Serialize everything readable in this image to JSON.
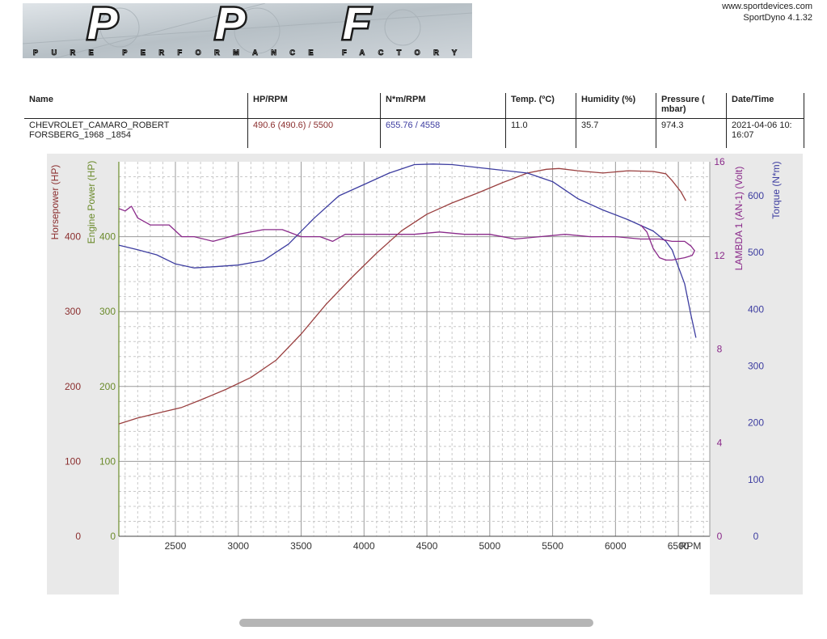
{
  "header": {
    "logo_text": "PPF",
    "logo_tagline": "PURE PERFORMANCE FACTORY",
    "website": "www.sportdevices.com",
    "software": "SportDyno 4.1.32"
  },
  "table": {
    "headers": [
      "Name",
      "HP/RPM",
      "N*m/RPM",
      "Temp. (ºC)",
      "Humidity (%)",
      "Pressure ( mbar)",
      "Date/Time"
    ],
    "row": {
      "name": "CHEVROLET_CAMARO_ROBERT FORSBERG_1968 _1854",
      "hp_rpm": "490.6 (490.6) / 5500",
      "nm_rpm": "655.76 / 4558",
      "temp": "11.0",
      "humidity": "35.7",
      "pressure": "974.3",
      "datetime": "2021-04-06 10: 16:07"
    }
  },
  "chart_data": {
    "type": "line",
    "xlabel": "RPM",
    "xlim": [
      2050,
      6750
    ],
    "x_ticks": [
      2500,
      3000,
      3500,
      4000,
      4500,
      5000,
      5500,
      6000,
      6500
    ],
    "axes": {
      "horsepower": {
        "label": "Horsepower (HP)",
        "range": [
          0,
          500
        ],
        "ticks": [
          0,
          100,
          200,
          300,
          400
        ],
        "color": "#8b2f2f"
      },
      "engine_power": {
        "label": "Engine Power (HP)",
        "range": [
          0,
          500
        ],
        "ticks": [
          0,
          100,
          200,
          300,
          400
        ],
        "color": "#6a8a2a"
      },
      "lambda": {
        "label": "LAMBDA 1 (AN-1) (Volt)",
        "range": [
          0,
          16
        ],
        "ticks": [
          0,
          4,
          8,
          12,
          16
        ],
        "color": "#8a2a8a"
      },
      "torque": {
        "label": "Torque (N*m)",
        "range": [
          0,
          660
        ],
        "ticks": [
          0,
          100,
          200,
          300,
          400,
          500,
          600
        ],
        "color": "#3d3da0"
      }
    },
    "series": [
      {
        "axis": "horsepower",
        "color": "#9a4040",
        "x": [
          2050,
          2200,
          2400,
          2550,
          2700,
          2900,
          3100,
          3300,
          3500,
          3700,
          3900,
          4100,
          4300,
          4500,
          4700,
          4900,
          5100,
          5300,
          5450,
          5550,
          5700,
          5900,
          6100,
          6300,
          6400,
          6450,
          6520,
          6560
        ],
        "y": [
          150,
          158,
          166,
          172,
          182,
          196,
          212,
          235,
          270,
          310,
          345,
          378,
          408,
          430,
          445,
          458,
          472,
          485,
          490,
          491,
          488,
          485,
          488,
          487,
          484,
          475,
          460,
          448
        ]
      },
      {
        "axis": "torque",
        "color": "#3d3da0",
        "x": [
          2050,
          2200,
          2350,
          2500,
          2650,
          2800,
          3000,
          3200,
          3400,
          3600,
          3800,
          4000,
          4200,
          4400,
          4550,
          4700,
          4900,
          5100,
          5300,
          5500,
          5700,
          5900,
          6100,
          6300,
          6400,
          6450,
          6500,
          6550,
          6600,
          6640
        ],
        "y": [
          513,
          505,
          496,
          480,
          473,
          475,
          478,
          486,
          515,
          560,
          600,
          620,
          640,
          655,
          656,
          655,
          650,
          645,
          640,
          625,
          595,
          575,
          558,
          538,
          520,
          505,
          475,
          445,
          390,
          350
        ]
      },
      {
        "axis": "lambda",
        "color": "#8a2a8a",
        "x": [
          2050,
          2100,
          2150,
          2200,
          2300,
          2450,
          2550,
          2650,
          2800,
          3000,
          3200,
          3350,
          3500,
          3650,
          3750,
          3850,
          4000,
          4200,
          4400,
          4600,
          4800,
          5000,
          5200,
          5400,
          5600,
          5800,
          6000,
          6200,
          6350,
          6450,
          6550,
          6600,
          6630,
          6610,
          6550,
          6450,
          6400,
          6350,
          6300,
          6250,
          6200
        ],
        "y": [
          14.0,
          13.9,
          14.1,
          13.6,
          13.3,
          13.3,
          12.8,
          12.8,
          12.6,
          12.9,
          13.1,
          13.1,
          12.8,
          12.8,
          12.6,
          12.9,
          12.9,
          12.9,
          12.9,
          13.0,
          12.9,
          12.9,
          12.7,
          12.8,
          12.9,
          12.8,
          12.8,
          12.7,
          12.7,
          12.6,
          12.6,
          12.4,
          12.2,
          12.0,
          11.9,
          11.8,
          11.8,
          11.9,
          12.3,
          13.0,
          13.3
        ]
      }
    ],
    "grid": true
  }
}
